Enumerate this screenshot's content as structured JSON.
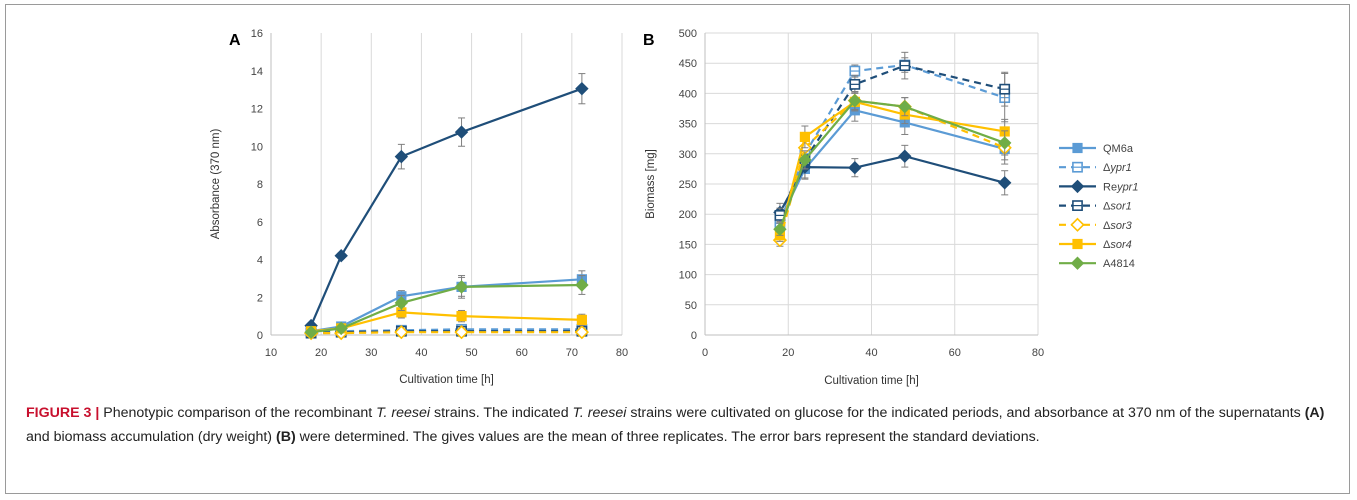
{
  "figure": {
    "legend": [
      {
        "label": "QM6a",
        "color": "#5b9bd5",
        "style": "solid",
        "marker": "square-filled"
      },
      {
        "label": "Δypr1",
        "color": "#5b9bd5",
        "style": "dashed",
        "marker": "square-open"
      },
      {
        "label": "Reypr1",
        "color": "#1f4e79",
        "style": "solid",
        "marker": "diamond-filled"
      },
      {
        "label": "Δsor1",
        "color": "#1f4e79",
        "style": "dashed",
        "marker": "square-open"
      },
      {
        "label": "Δsor3",
        "color": "#ffc000",
        "style": "dashed",
        "marker": "diamond-open"
      },
      {
        "label": "Δsor4",
        "color": "#ffc000",
        "style": "solid",
        "marker": "square-filled"
      },
      {
        "label": "A4814",
        "color": "#70ad47",
        "style": "solid",
        "marker": "diamond-filled"
      }
    ],
    "caption": {
      "label": "FIGURE 3 |",
      "parts": [
        {
          "t": " Phenotypic comparison of the recombinant "
        },
        {
          "t": "T. reesei",
          "i": true
        },
        {
          "t": " strains. The indicated "
        },
        {
          "t": "T. reesei",
          "i": true
        },
        {
          "t": " strains were cultivated on glucose for the indicated periods, and absorbance at 370 nm of the supernatants "
        },
        {
          "t": "(A)",
          "b": true
        },
        {
          "t": " and biomass accumulation (dry weight) "
        },
        {
          "t": "(B)",
          "b": true
        },
        {
          "t": " were determined. The gives values are the mean of three replicates. The error bars represent the standard deviations."
        }
      ]
    }
  },
  "chart_data": [
    {
      "panel": "A",
      "type": "line",
      "xlabel": "Cultivation time [h]",
      "ylabel": "Absorbance (370 nm)",
      "xlim": [
        10,
        80
      ],
      "ylim": [
        0,
        16
      ],
      "xticks": [
        10,
        20,
        30,
        40,
        50,
        60,
        70,
        80
      ],
      "yticks": [
        0,
        2,
        4,
        6,
        8,
        10,
        12,
        14,
        16
      ],
      "grid": "vertical",
      "series": [
        {
          "name": "QM6a",
          "x": [
            18,
            24,
            36,
            48,
            72
          ],
          "y": [
            0.2,
            0.45,
            2.05,
            2.55,
            2.95
          ],
          "err": [
            0.05,
            0.1,
            0.3,
            0.5,
            0.45
          ]
        },
        {
          "name": "Δypr1",
          "x": [
            18,
            24,
            36,
            48,
            72
          ],
          "y": [
            0.15,
            0.2,
            0.25,
            0.3,
            0.3
          ],
          "err": [
            0.05,
            0.05,
            0.1,
            0.1,
            0.1
          ]
        },
        {
          "name": "Reypr1",
          "x": [
            18,
            24,
            36,
            48,
            72
          ],
          "y": [
            0.5,
            4.2,
            9.45,
            10.75,
            13.05
          ],
          "err": [
            0.1,
            0.15,
            0.65,
            0.75,
            0.8
          ]
        },
        {
          "name": "Δsor1",
          "x": [
            18,
            24,
            36,
            48,
            72
          ],
          "y": [
            0.1,
            0.15,
            0.2,
            0.2,
            0.2
          ],
          "err": [
            0.05,
            0.05,
            0.1,
            0.1,
            0.1
          ]
        },
        {
          "name": "Δsor3",
          "x": [
            18,
            24,
            36,
            48,
            72
          ],
          "y": [
            0.1,
            0.1,
            0.15,
            0.15,
            0.15
          ],
          "err": [
            0.05,
            0.05,
            0.1,
            0.1,
            0.1
          ]
        },
        {
          "name": "Δsor4",
          "x": [
            18,
            24,
            36,
            48,
            72
          ],
          "y": [
            0.2,
            0.35,
            1.2,
            1.0,
            0.8
          ],
          "err": [
            0.05,
            0.1,
            0.3,
            0.3,
            0.3
          ]
        },
        {
          "name": "A4814",
          "x": [
            18,
            24,
            36,
            48,
            72
          ],
          "y": [
            0.15,
            0.35,
            1.7,
            2.55,
            2.65
          ],
          "err": [
            0.05,
            0.1,
            0.4,
            0.6,
            0.5
          ]
        }
      ]
    },
    {
      "panel": "B",
      "type": "line",
      "xlabel": "Cultivation time [h]",
      "ylabel": "Biomass [mg]",
      "xlim": [
        0,
        80
      ],
      "ylim": [
        0,
        500
      ],
      "xticks": [
        0,
        20,
        40,
        60,
        80
      ],
      "yticks": [
        0,
        50,
        100,
        150,
        200,
        250,
        300,
        350,
        400,
        450,
        500
      ],
      "grid": "both",
      "series": [
        {
          "name": "QM6a",
          "x": [
            18,
            24,
            36,
            48,
            72
          ],
          "y": [
            190,
            275,
            372,
            352,
            308
          ],
          "err": [
            10,
            15,
            18,
            20,
            25
          ]
        },
        {
          "name": "Δypr1",
          "x": [
            18,
            24,
            36,
            48,
            72
          ],
          "y": [
            185,
            300,
            437,
            447,
            393
          ],
          "err": [
            10,
            15,
            10,
            12,
            40
          ]
        },
        {
          "name": "Reypr1",
          "x": [
            18,
            24,
            36,
            48,
            72
          ],
          "y": [
            203,
            278,
            277,
            296,
            252
          ],
          "err": [
            15,
            20,
            15,
            18,
            20
          ]
        },
        {
          "name": "Δsor1",
          "x": [
            18,
            24,
            36,
            48,
            72
          ],
          "y": [
            198,
            290,
            415,
            446,
            407
          ],
          "err": [
            12,
            15,
            15,
            22,
            28
          ]
        },
        {
          "name": "Δsor3",
          "x": [
            18,
            24,
            36,
            48,
            72
          ],
          "y": [
            157,
            310,
            388,
            378,
            310
          ],
          "err": [
            10,
            20,
            15,
            15,
            20
          ]
        },
        {
          "name": "Δsor4",
          "x": [
            18,
            24,
            36,
            48,
            72
          ],
          "y": [
            165,
            328,
            386,
            365,
            337
          ],
          "err": [
            10,
            18,
            15,
            15,
            20
          ]
        },
        {
          "name": "A4814",
          "x": [
            18,
            24,
            36,
            48,
            72
          ],
          "y": [
            175,
            290,
            388,
            378,
            318
          ],
          "err": [
            10,
            15,
            15,
            15,
            20
          ]
        }
      ]
    }
  ]
}
